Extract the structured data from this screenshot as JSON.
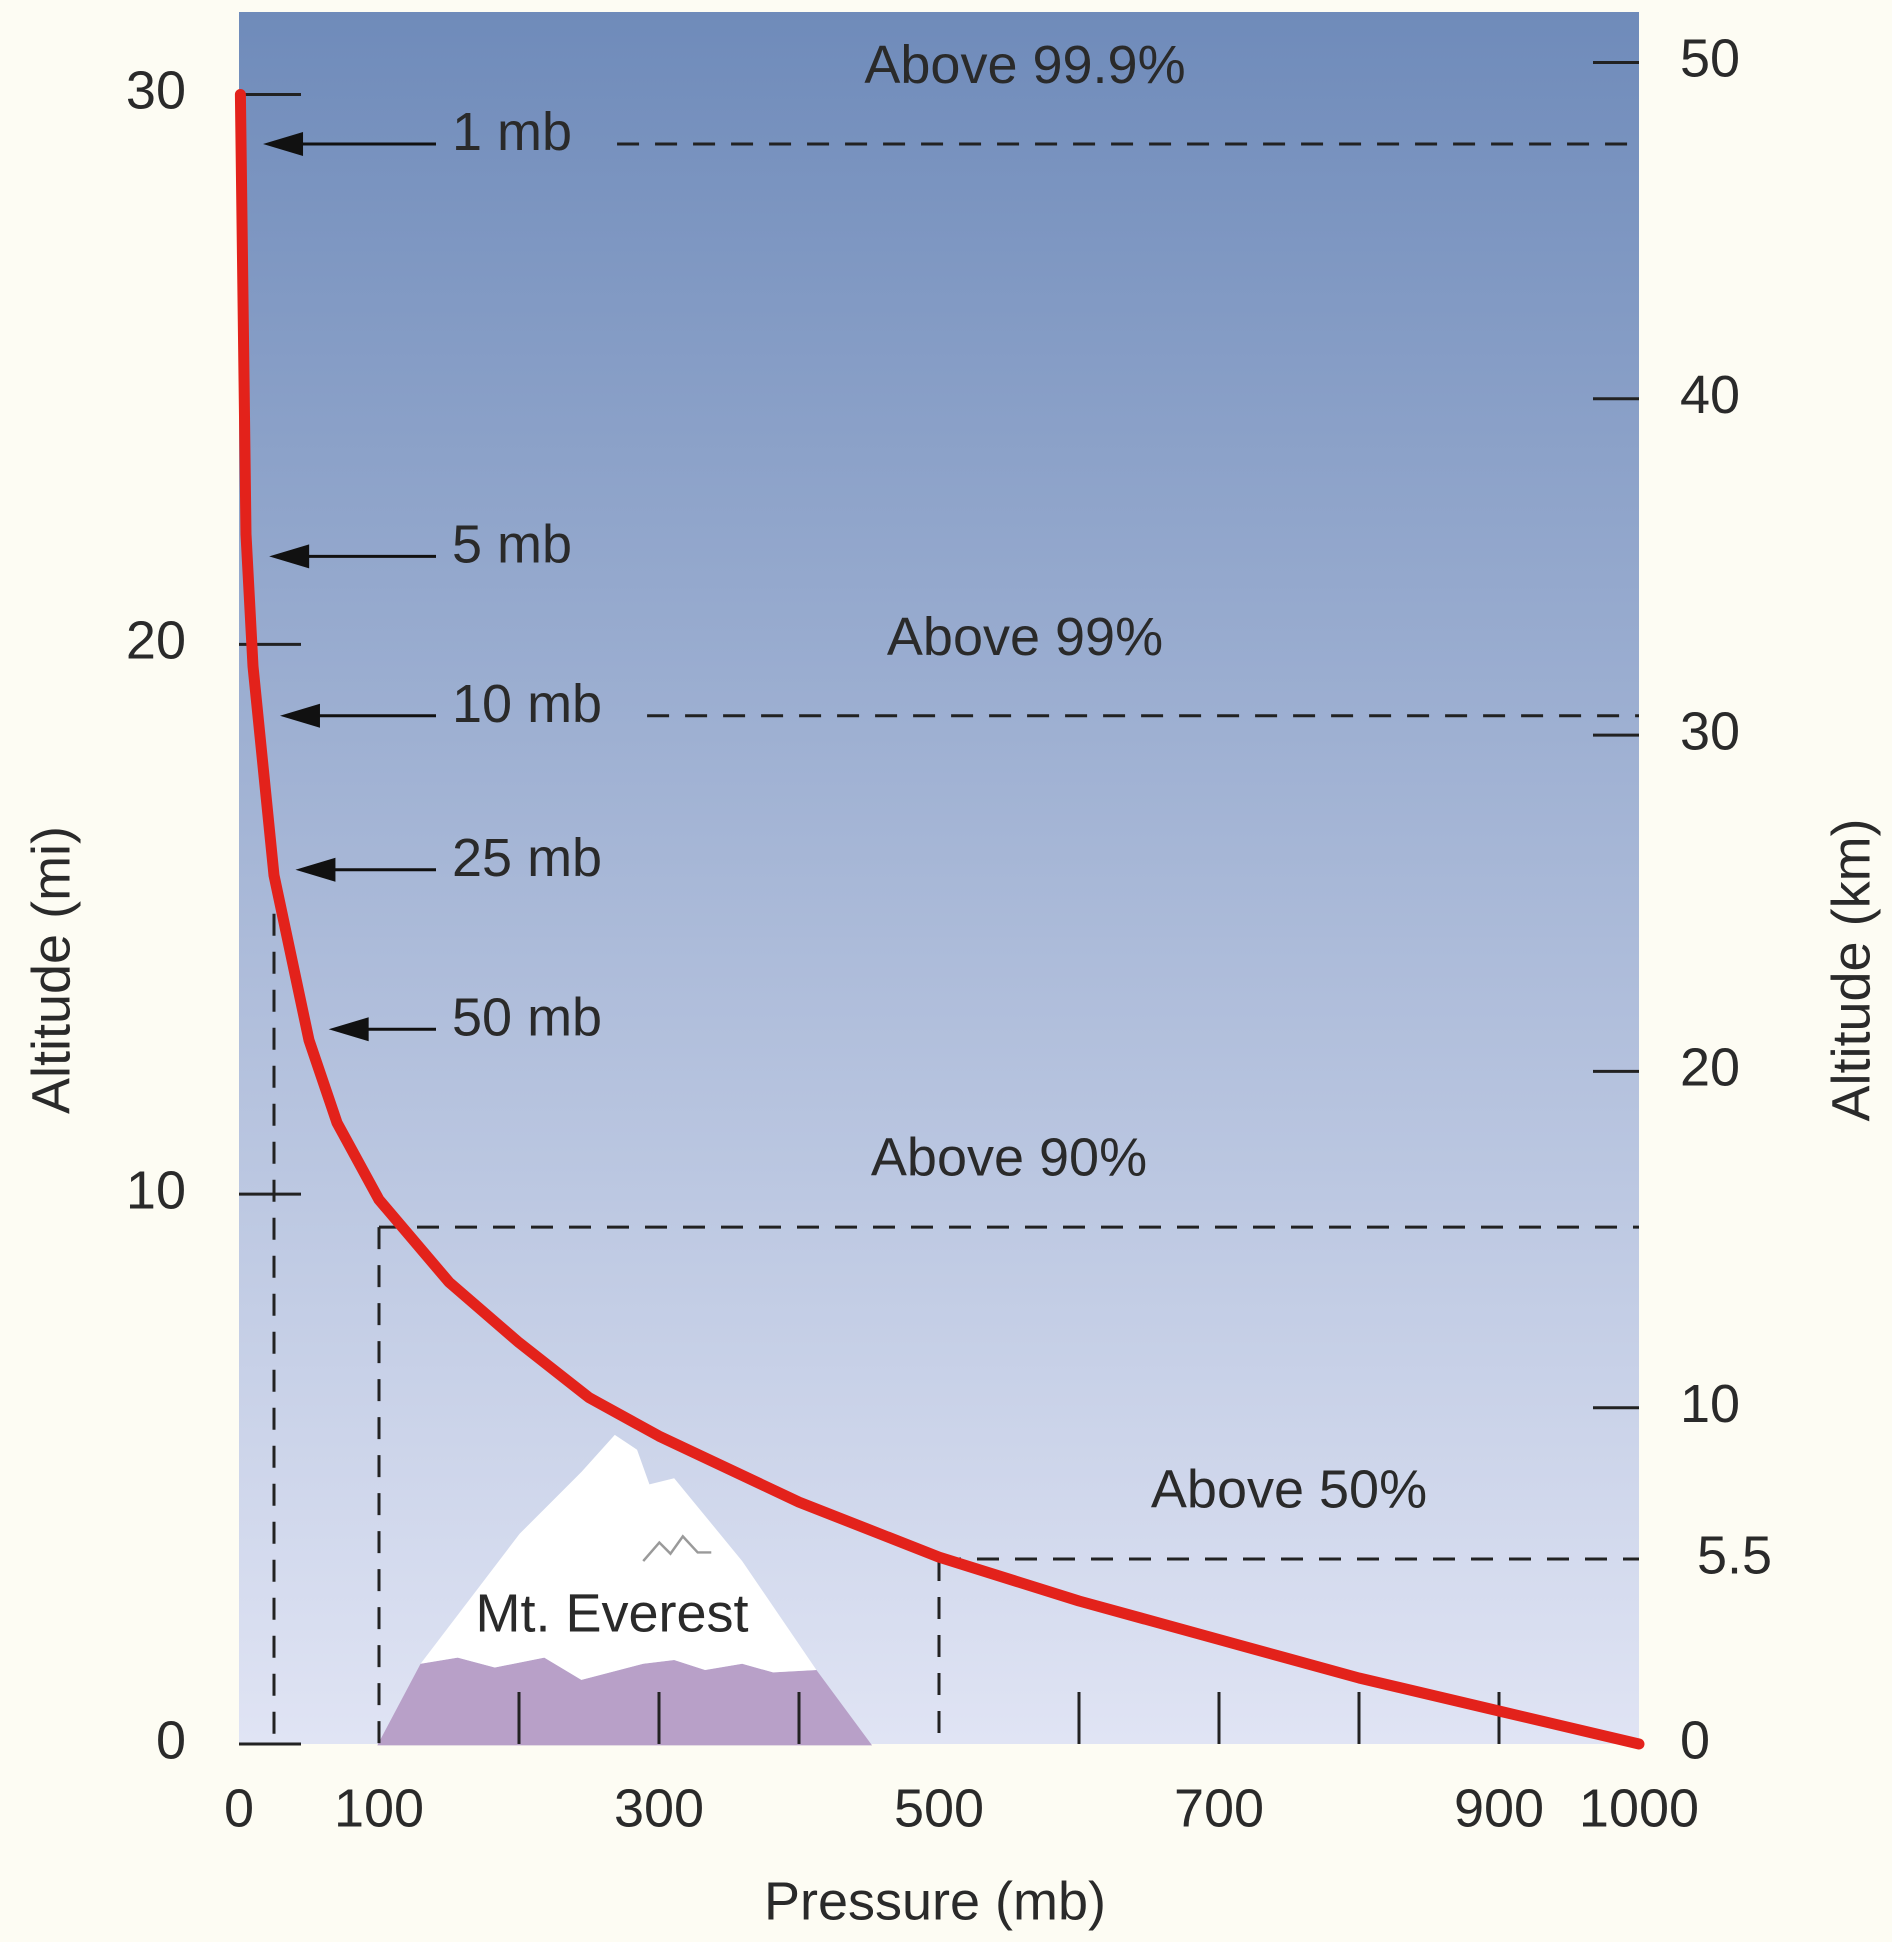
{
  "chart_data": {
    "type": "line",
    "x": [
      1,
      5,
      10,
      25,
      50,
      70,
      100,
      150,
      200,
      250,
      300,
      400,
      500,
      600,
      700,
      800,
      900,
      1000
    ],
    "values": [
      30,
      22,
      19.6,
      15.8,
      12.8,
      11.3,
      9.9,
      8.4,
      7.3,
      6.3,
      5.6,
      4.4,
      3.4,
      2.6,
      1.9,
      1.2,
      0.6,
      0
    ],
    "color": "#e3221b",
    "xlabel": "Pressure (mb)",
    "ylabel": "Altitude (mi)",
    "y2label": "Altitude (km)",
    "xlim": [
      0,
      1000
    ],
    "xticks": [
      0,
      100,
      300,
      500,
      700,
      900,
      1000
    ],
    "xtick_marks": [
      200,
      300,
      400,
      600,
      700,
      800,
      900
    ],
    "ylim": [
      0,
      31.5
    ],
    "yticks": [
      0,
      10,
      20,
      30
    ],
    "y2lim": [
      0,
      51.5
    ],
    "y2ticks": [
      0,
      5.5,
      10,
      20,
      30,
      40,
      50
    ],
    "levels": [
      {
        "label": "1 mb",
        "altitude": 29.1,
        "note": "Above 99.9%"
      },
      {
        "label": "5 mb",
        "altitude": 21.6
      },
      {
        "label": "10 mb",
        "altitude": 18.7,
        "note": "Above 99%"
      },
      {
        "label": "25 mb",
        "altitude": 15.9,
        "drop_pressure": 25,
        "drop_altitude": 15.1
      },
      {
        "label": "50 mb",
        "altitude": 13.0
      }
    ],
    "guides": [
      {
        "note": "Above 90%",
        "pressure": 100,
        "altitude": 9.4
      },
      {
        "note": "Above 50%",
        "pressure": 500,
        "altitude_km": 5.5
      }
    ],
    "everest_label": "Mt. Everest"
  }
}
